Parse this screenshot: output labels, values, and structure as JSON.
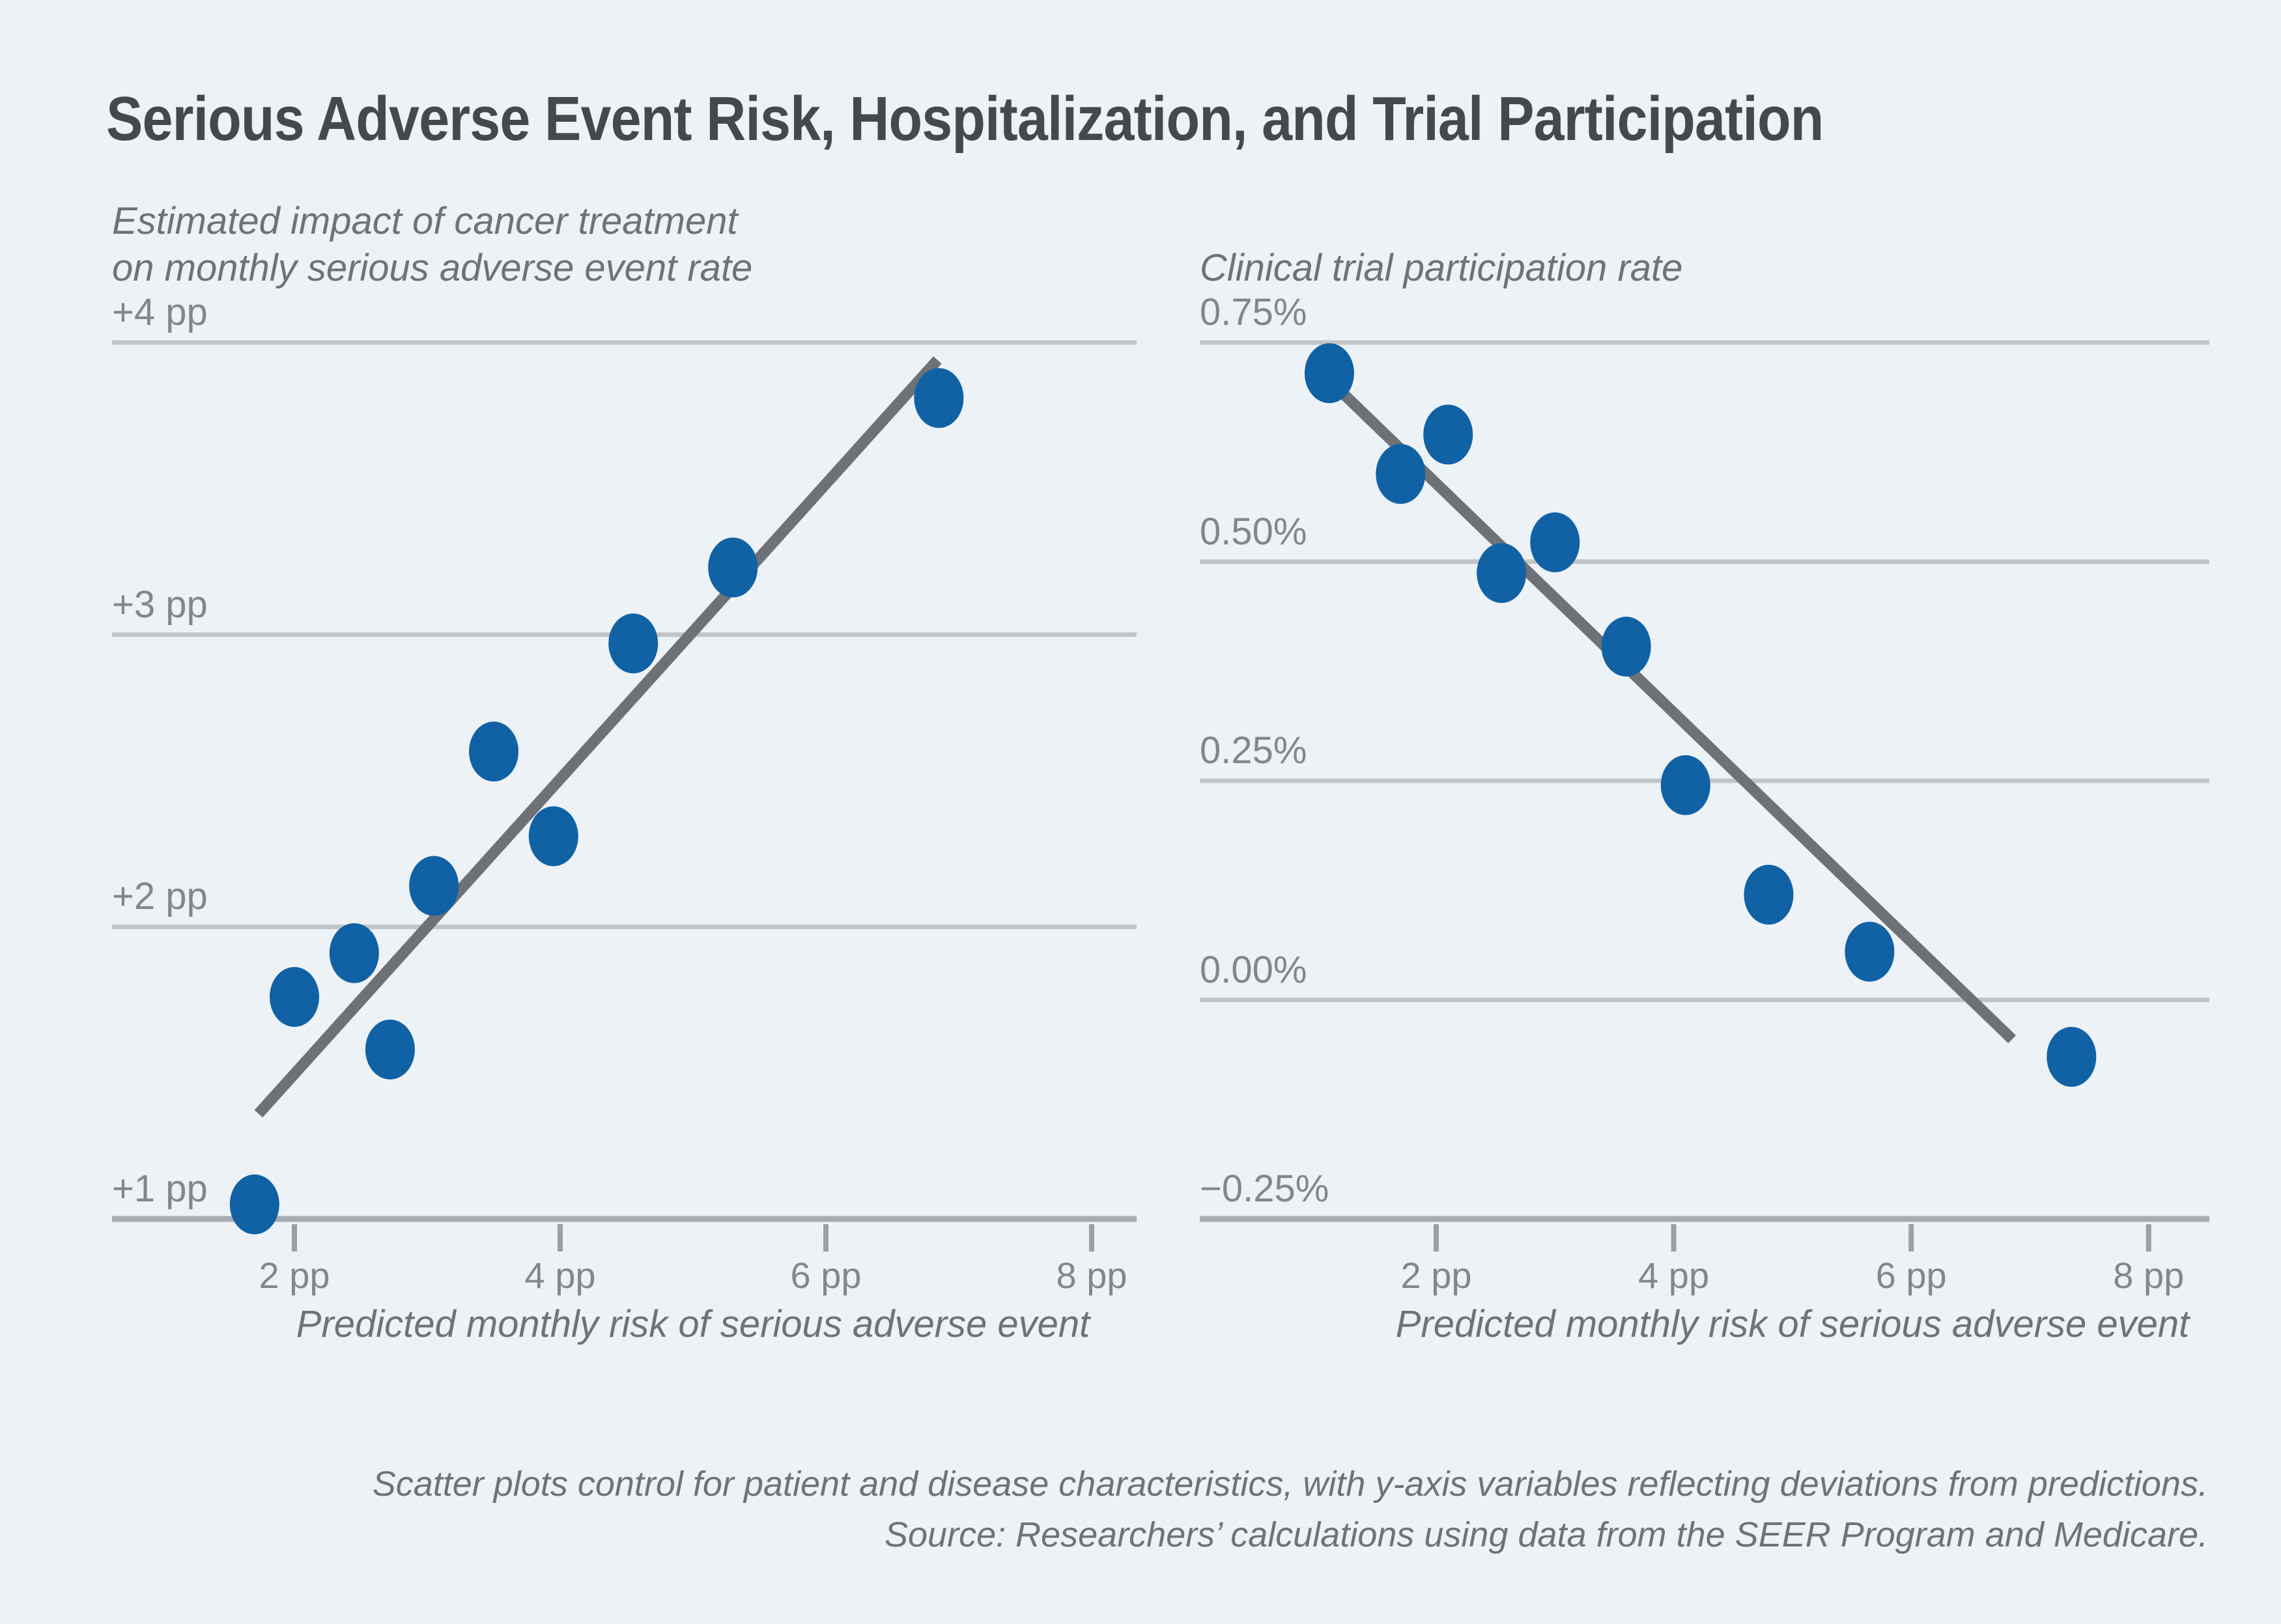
{
  "page": {
    "title": "Serious Adverse Event Risk, Hospitalization, and Trial Participation",
    "background_color": "#edf2f7"
  },
  "colors": {
    "point": "#1062a5",
    "trend_line": "#6e7175",
    "gridline": "#c2c5c8",
    "axis_line": "#a8abb0",
    "tick_mark": "#9ca0a5",
    "title_text": "#45494d",
    "subtitle_text": "#6f7377",
    "tick_label_text": "#83878c"
  },
  "footer": {
    "line1": "Scatter plots control for patient and disease characteristics, with y-axis variables reflecting deviations from predictions.",
    "line2": "Source: Researchers’ calculations using data from the SEER Program and Medicare."
  },
  "chart_data": [
    {
      "type": "scatter",
      "title_line1": "Estimated impact of cancer treatment",
      "title_line2": "on monthly serious adverse event rate",
      "xlabel": "Predicted monthly risk of serious adverse event",
      "xlim": [
        0.63,
        8.34
      ],
      "ylim": [
        1,
        4
      ],
      "grid": "horizontal-only",
      "legend_position": "none",
      "x_ticks": [
        {
          "value": 2,
          "label": "2 pp"
        },
        {
          "value": 4,
          "label": "4 pp"
        },
        {
          "value": 6,
          "label": "6 pp"
        },
        {
          "value": 8,
          "label": "8 pp"
        }
      ],
      "y_gridlines": [
        {
          "value": 4,
          "label": "+4 pp",
          "is_axis": false
        },
        {
          "value": 3,
          "label": "+3 pp",
          "is_axis": false
        },
        {
          "value": 2,
          "label": "+2 pp",
          "is_axis": false
        },
        {
          "value": 1,
          "label": "+1 pp",
          "is_axis": true
        }
      ],
      "points": [
        [
          1.7,
          1.05
        ],
        [
          2.0,
          1.76
        ],
        [
          2.45,
          1.91
        ],
        [
          2.72,
          1.58
        ],
        [
          3.05,
          2.14
        ],
        [
          3.5,
          2.6
        ],
        [
          3.95,
          2.31
        ],
        [
          4.55,
          2.97
        ],
        [
          5.3,
          3.23
        ],
        [
          6.85,
          3.81
        ]
      ],
      "trend": {
        "x1": 1.73,
        "y1": 1.36,
        "x2": 6.84,
        "y2": 3.94
      }
    },
    {
      "type": "scatter",
      "title_line1": "Clinical trial participation rate",
      "title_line2": "",
      "xlabel": "Predicted monthly risk of serious adverse event",
      "xlim": [
        0.0,
        8.5
      ],
      "ylim": [
        -0.25,
        0.75
      ],
      "grid": "horizontal-only",
      "legend_position": "none",
      "x_ticks": [
        {
          "value": 2,
          "label": "2 pp"
        },
        {
          "value": 4,
          "label": "4 pp"
        },
        {
          "value": 6,
          "label": "6 pp"
        },
        {
          "value": 8,
          "label": "8 pp"
        }
      ],
      "y_gridlines": [
        {
          "value": 0.75,
          "label": "0.75%",
          "is_axis": false
        },
        {
          "value": 0.5,
          "label": "0.50%",
          "is_axis": false
        },
        {
          "value": 0.25,
          "label": "0.25%",
          "is_axis": false
        },
        {
          "value": 0.0,
          "label": "0.00%",
          "is_axis": false
        },
        {
          "value": -0.25,
          "label": "−0.25%",
          "is_axis": true
        }
      ],
      "points": [
        [
          1.1,
          0.715
        ],
        [
          1.7,
          0.6
        ],
        [
          2.1,
          0.645
        ],
        [
          2.55,
          0.487
        ],
        [
          3.0,
          0.522
        ],
        [
          3.6,
          0.403
        ],
        [
          4.1,
          0.245
        ],
        [
          4.8,
          0.12
        ],
        [
          5.65,
          0.055
        ],
        [
          7.35,
          -0.065
        ]
      ],
      "trend": {
        "x1": 1.0,
        "y1": 0.72,
        "x2": 6.85,
        "y2": -0.045
      }
    }
  ]
}
